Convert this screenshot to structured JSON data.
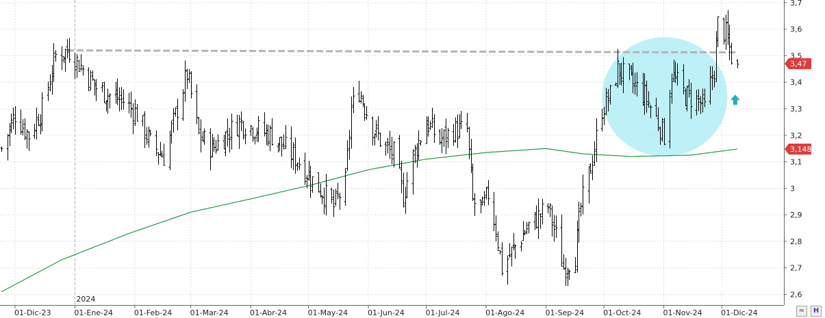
{
  "chart_data": {
    "type": "ohlc",
    "title": "",
    "xlabel": "",
    "ylabel": "",
    "ylim": [
      2.56,
      3.71
    ],
    "y_ticks": [
      "2,6",
      "2,7",
      "2,8",
      "2,9",
      "3",
      "3,1",
      "3,2",
      "3,3",
      "3,4",
      "3,5",
      "3,6",
      "3,7"
    ],
    "x_ticks": [
      "01-Dic-23",
      "01-Ene-24",
      "01-Feb-24",
      "01-Mar-24",
      "01-Abr-24",
      "01-May-24",
      "01-Jun-24",
      "01-Jul-24",
      "01-Ago-24",
      "01-Sep-24",
      "01-Oct-24",
      "01-Nov-24",
      "01-Dic-24"
    ],
    "year_marker": "2024",
    "grid": true,
    "price_anchors": [
      [
        "2023-11-24",
        3.15
      ],
      [
        "2023-12-01",
        3.28
      ],
      [
        "2023-12-08",
        3.2
      ],
      [
        "2023-12-15",
        3.3
      ],
      [
        "2023-12-22",
        3.5
      ],
      [
        "2023-12-29",
        3.52
      ],
      [
        "2024-01-05",
        3.45
      ],
      [
        "2024-01-12",
        3.38
      ],
      [
        "2024-01-19",
        3.35
      ],
      [
        "2024-01-26",
        3.33
      ],
      [
        "2024-02-02",
        3.28
      ],
      [
        "2024-02-09",
        3.17
      ],
      [
        "2024-02-16",
        3.12
      ],
      [
        "2024-02-23",
        3.3
      ],
      [
        "2024-02-28",
        3.43
      ],
      [
        "2024-03-05",
        3.2
      ],
      [
        "2024-03-12",
        3.15
      ],
      [
        "2024-03-19",
        3.2
      ],
      [
        "2024-03-26",
        3.25
      ],
      [
        "2024-04-05",
        3.22
      ],
      [
        "2024-04-12",
        3.2
      ],
      [
        "2024-04-19",
        3.15
      ],
      [
        "2024-04-26",
        3.1
      ],
      [
        "2024-05-03",
        3.03
      ],
      [
        "2024-05-10",
        2.97
      ],
      [
        "2024-05-14",
        2.93
      ],
      [
        "2024-05-20",
        3.02
      ],
      [
        "2024-05-23",
        3.3
      ],
      [
        "2024-05-27",
        3.37
      ],
      [
        "2024-06-03",
        3.23
      ],
      [
        "2024-06-10",
        3.15
      ],
      [
        "2024-06-14",
        3.13
      ],
      [
        "2024-06-19",
        2.97
      ],
      [
        "2024-06-24",
        3.12
      ],
      [
        "2024-07-01",
        3.25
      ],
      [
        "2024-07-08",
        3.18
      ],
      [
        "2024-07-15",
        3.22
      ],
      [
        "2024-07-22",
        3.22
      ],
      [
        "2024-07-25",
        2.95
      ],
      [
        "2024-07-30",
        2.92
      ],
      [
        "2024-08-02",
        2.98
      ],
      [
        "2024-08-06",
        2.85
      ],
      [
        "2024-08-09",
        2.7
      ],
      [
        "2024-08-15",
        2.77
      ],
      [
        "2024-08-22",
        2.85
      ],
      [
        "2024-08-29",
        2.9
      ],
      [
        "2024-09-02",
        2.93
      ],
      [
        "2024-09-06",
        2.82
      ],
      [
        "2024-09-10",
        2.7
      ],
      [
        "2024-09-16",
        2.75
      ],
      [
        "2024-09-19",
        2.93
      ],
      [
        "2024-09-24",
        3.08
      ],
      [
        "2024-09-30",
        3.3
      ],
      [
        "2024-10-04",
        3.35
      ],
      [
        "2024-10-08",
        3.45
      ],
      [
        "2024-10-15",
        3.4
      ],
      [
        "2024-10-22",
        3.35
      ],
      [
        "2024-10-29",
        3.25
      ],
      [
        "2024-11-01",
        3.2
      ],
      [
        "2024-11-05",
        3.43
      ],
      [
        "2024-11-12",
        3.35
      ],
      [
        "2024-11-19",
        3.33
      ],
      [
        "2024-11-22",
        3.3
      ],
      [
        "2024-11-27",
        3.45
      ],
      [
        "2024-11-29",
        3.62
      ],
      [
        "2024-12-03",
        3.58
      ],
      [
        "2024-12-06",
        3.5
      ],
      [
        "2024-12-09",
        3.45
      ]
    ],
    "moving_average": {
      "color": "#1e9c3c",
      "points": [
        [
          "2023-11-24",
          2.61
        ],
        [
          "2023-12-25",
          2.73
        ],
        [
          "2024-01-29",
          2.83
        ],
        [
          "2024-03-01",
          2.91
        ],
        [
          "2024-04-01",
          2.96
        ],
        [
          "2024-05-01",
          3.01
        ],
        [
          "2024-06-01",
          3.07
        ],
        [
          "2024-07-01",
          3.11
        ],
        [
          "2024-08-01",
          3.135
        ],
        [
          "2024-09-01",
          3.15
        ],
        [
          "2024-09-20",
          3.13
        ],
        [
          "2024-10-15",
          3.12
        ],
        [
          "2024-11-15",
          3.125
        ],
        [
          "2024-12-09",
          3.148
        ]
      ]
    },
    "resistance_line": {
      "start": "2023-12-28",
      "end": "2024-12-09",
      "value": 3.52,
      "color": "#b4b4b4"
    },
    "highlight_ellipse": {
      "x_range": [
        "2024-09-30",
        "2024-12-04"
      ],
      "y_range": [
        3.12,
        3.57
      ],
      "color": "#a8ecf4"
    },
    "signal_arrow": {
      "date": "2024-12-08",
      "value": 3.33,
      "color": "#22b0b8"
    },
    "last_price_badge": {
      "label": "3,47",
      "value": 3.47,
      "color": "#e03c3c"
    },
    "ma_value_badge": {
      "label": "3,148",
      "value": 3.148,
      "color": "#e03c3c"
    }
  },
  "corner_buttons": {
    "scale_glyph": "≈",
    "save_glyph": "H"
  }
}
